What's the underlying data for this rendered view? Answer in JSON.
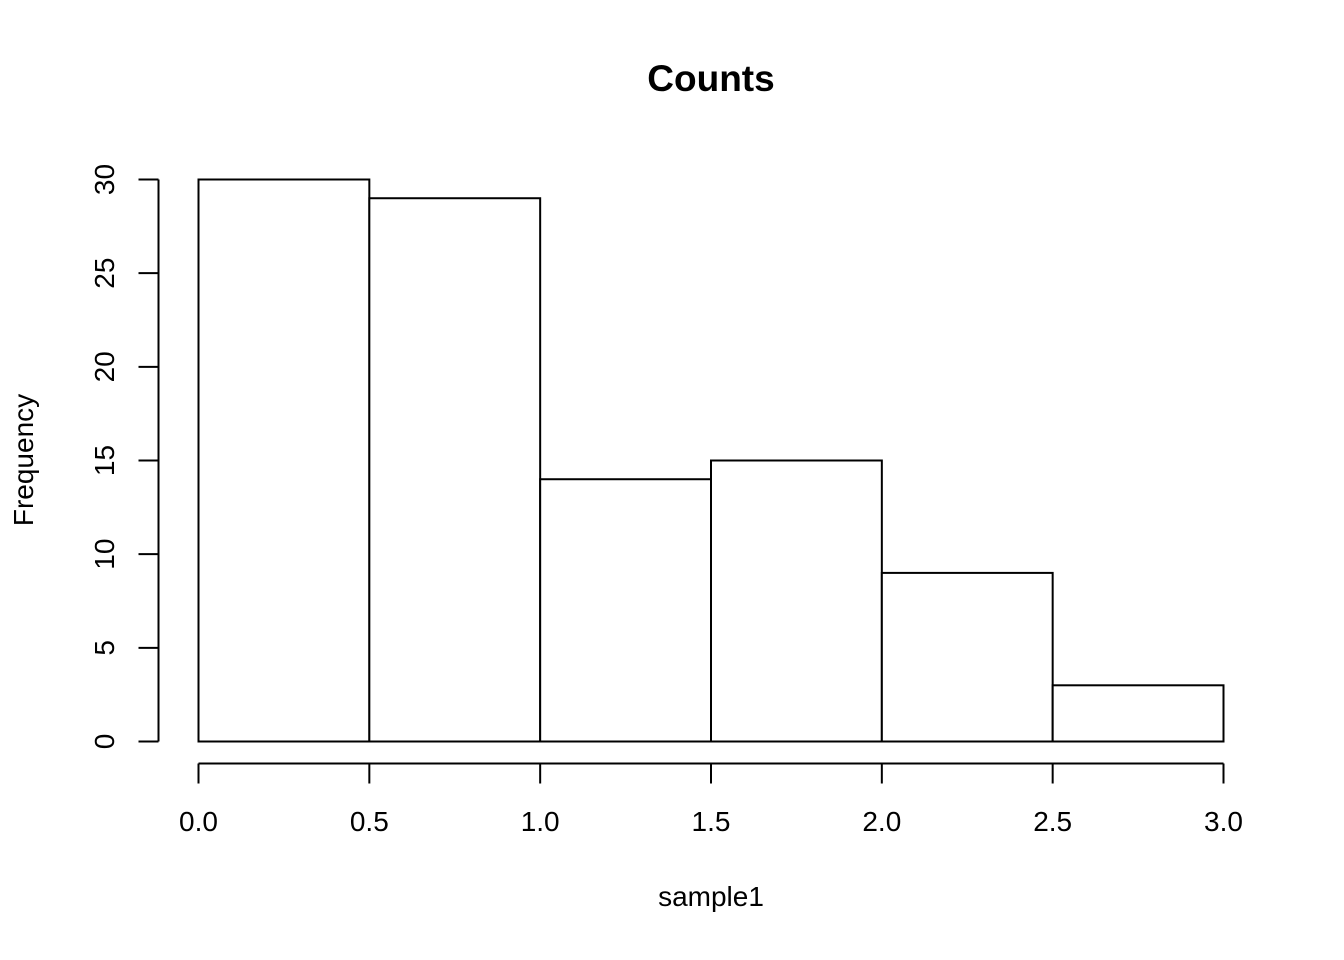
{
  "figure": {
    "background": "#ffffff"
  },
  "chart_data": {
    "type": "bar",
    "subtype": "histogram",
    "title": "Counts",
    "xlabel": "sample1",
    "ylabel": "Frequency",
    "breaks": [
      0.0,
      0.5,
      1.0,
      1.5,
      2.0,
      2.5,
      3.0
    ],
    "counts": [
      30,
      29,
      14,
      15,
      9,
      3
    ],
    "xlim": [
      0.0,
      3.0
    ],
    "ylim": [
      0,
      30
    ],
    "x_tick_values": [
      0.0,
      0.5,
      1.0,
      1.5,
      2.0,
      2.5,
      3.0
    ],
    "x_tick_labels": [
      "0.0",
      "0.5",
      "1.0",
      "1.5",
      "2.0",
      "2.5",
      "3.0"
    ],
    "y_tick_values": [
      0,
      5,
      10,
      15,
      20,
      25,
      30
    ],
    "y_tick_labels": [
      "0",
      "5",
      "10",
      "15",
      "20",
      "25",
      "30"
    ],
    "grid": false,
    "legend": null,
    "bar_fill": "#ffffff",
    "line_color": "#000000",
    "text_color": "#000000"
  }
}
